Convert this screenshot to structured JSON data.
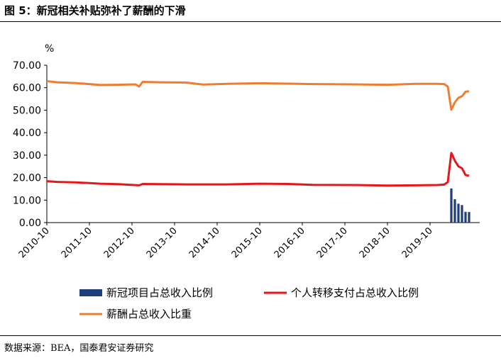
{
  "figure": {
    "title": "图 5：新冠相关补贴弥补了薪酬的下滑",
    "source": "数据来源：BEA，国泰君安证券研究"
  },
  "chart_data": {
    "type": "line",
    "ylabel": "%",
    "ylim": [
      0,
      70
    ],
    "yticks": [
      "70.00",
      "60.00",
      "50.00",
      "40.00",
      "30.00",
      "20.00",
      "10.00",
      "0.00"
    ],
    "x_start": "2010-10",
    "x_end": "2020-12",
    "x_ticks": [
      "2010-10",
      "2011-10",
      "2012-10",
      "2013-10",
      "2014-10",
      "2015-10",
      "2016-10",
      "2017-10",
      "2018-10",
      "2019-10"
    ],
    "grid": false,
    "legend_position": "bottom",
    "series": [
      {
        "name": "新冠项目占总收入比例",
        "type": "bar",
        "color": "#1f3d7a",
        "points": [
          [
            "2020-04",
            15.2
          ],
          [
            "2020-05",
            10.4
          ],
          [
            "2020-06",
            8.4
          ],
          [
            "2020-07",
            7.8
          ],
          [
            "2020-08",
            4.8
          ],
          [
            "2020-09",
            4.7
          ]
        ]
      },
      {
        "name": "个人转移支付占总收入比例",
        "type": "line",
        "color": "#e8161b",
        "points": [
          [
            "2010-10",
            18.4
          ],
          [
            "2011-01",
            18.1
          ],
          [
            "2011-06",
            17.9
          ],
          [
            "2011-10",
            17.6
          ],
          [
            "2012-01",
            17.3
          ],
          [
            "2012-06",
            17.1
          ],
          [
            "2012-12",
            16.6
          ],
          [
            "2013-01",
            17.2
          ],
          [
            "2013-06",
            17.1
          ],
          [
            "2014-01",
            17.0
          ],
          [
            "2015-01",
            17.0
          ],
          [
            "2015-10",
            17.3
          ],
          [
            "2016-06",
            17.2
          ],
          [
            "2017-01",
            16.8
          ],
          [
            "2018-01",
            16.7
          ],
          [
            "2018-10",
            16.5
          ],
          [
            "2019-06",
            16.6
          ],
          [
            "2019-12",
            16.7
          ],
          [
            "2020-02",
            16.9
          ],
          [
            "2020-03",
            18.0
          ],
          [
            "2020-04",
            31.0
          ],
          [
            "2020-05",
            27.5
          ],
          [
            "2020-06",
            25.0
          ],
          [
            "2020-07",
            24.2
          ],
          [
            "2020-08",
            21.2
          ],
          [
            "2020-09",
            20.8
          ]
        ]
      },
      {
        "name": "薪酬占总收入比重",
        "type": "line",
        "color": "#ed7d31",
        "points": [
          [
            "2010-10",
            62.9
          ],
          [
            "2011-01",
            62.4
          ],
          [
            "2011-06",
            62.1
          ],
          [
            "2011-10",
            61.6
          ],
          [
            "2012-01",
            61.2
          ],
          [
            "2012-06",
            61.3
          ],
          [
            "2012-11",
            61.5
          ],
          [
            "2012-12",
            60.5
          ],
          [
            "2013-01",
            62.6
          ],
          [
            "2013-06",
            62.4
          ],
          [
            "2014-01",
            62.3
          ],
          [
            "2014-06",
            61.4
          ],
          [
            "2015-01",
            61.7
          ],
          [
            "2015-10",
            62.0
          ],
          [
            "2016-06",
            61.8
          ],
          [
            "2017-01",
            61.6
          ],
          [
            "2018-01",
            61.5
          ],
          [
            "2018-10",
            61.3
          ],
          [
            "2019-06",
            61.7
          ],
          [
            "2019-12",
            61.7
          ],
          [
            "2020-02",
            61.6
          ],
          [
            "2020-03",
            60.5
          ],
          [
            "2020-04",
            50.2
          ],
          [
            "2020-05",
            53.5
          ],
          [
            "2020-06",
            55.5
          ],
          [
            "2020-07",
            56.2
          ],
          [
            "2020-08",
            58.2
          ],
          [
            "2020-09",
            58.4
          ]
        ]
      }
    ]
  }
}
